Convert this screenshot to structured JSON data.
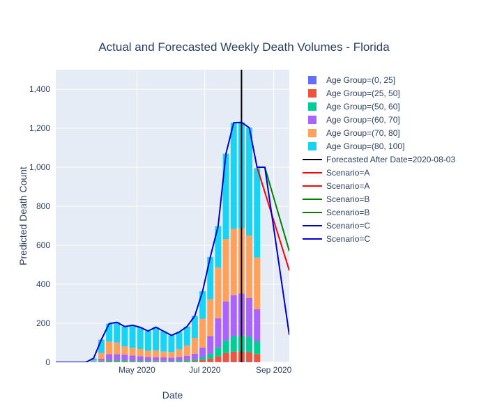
{
  "chart_data": {
    "type": "bar",
    "title": "Actual and Forecasted Weekly Death Volumes - Florida",
    "xlabel": "Date",
    "ylabel": "Predicted Death Count",
    "ylim": [
      0,
      1500
    ],
    "yticks": [
      0,
      200,
      400,
      600,
      800,
      1000,
      1200,
      1400
    ],
    "ytick_labels": [
      "0",
      "200",
      "400",
      "600",
      "800",
      "1,000",
      "1,200",
      "1,400"
    ],
    "xlim": [
      "2020-02-18",
      "2020-09-15"
    ],
    "xticks": [
      "2020-05-01",
      "2020-07-01",
      "2020-09-01"
    ],
    "xtick_labels": [
      "May 2020",
      "Jul 2020",
      "Sep 2020"
    ],
    "grid": true,
    "legend_position": "right",
    "weeks": [
      "2020-03-02",
      "2020-03-09",
      "2020-03-16",
      "2020-03-23",
      "2020-03-30",
      "2020-04-06",
      "2020-04-13",
      "2020-04-20",
      "2020-04-27",
      "2020-05-04",
      "2020-05-11",
      "2020-05-18",
      "2020-05-25",
      "2020-06-01",
      "2020-06-08",
      "2020-06-15",
      "2020-06-22",
      "2020-06-29",
      "2020-07-06",
      "2020-07-13",
      "2020-07-20",
      "2020-07-27",
      "2020-08-03",
      "2020-08-10",
      "2020-08-17"
    ],
    "series": [
      {
        "name": "Age Group=(0, 25]",
        "color": "#636efa",
        "values": [
          0,
          0,
          0,
          0,
          1,
          1,
          1,
          1,
          1,
          1,
          1,
          1,
          1,
          1,
          1,
          1,
          1,
          1,
          1,
          1,
          2,
          2,
          2,
          2,
          2
        ]
      },
      {
        "name": "Age Group=(25, 50]",
        "color": "#ef553b",
        "values": [
          0,
          0,
          0,
          1,
          3,
          4,
          4,
          4,
          3,
          3,
          3,
          3,
          3,
          2,
          3,
          4,
          6,
          10,
          18,
          30,
          45,
          52,
          53,
          50,
          40
        ]
      },
      {
        "name": "Age Group=(50, 60]",
        "color": "#00cc96",
        "values": [
          0,
          0,
          0,
          1,
          4,
          6,
          6,
          6,
          5,
          5,
          5,
          4,
          4,
          4,
          5,
          6,
          8,
          14,
          25,
          45,
          65,
          80,
          82,
          78,
          65
        ]
      },
      {
        "name": "Age Group=(60, 70]",
        "color": "#ab63fa",
        "values": [
          0,
          0,
          0,
          2,
          10,
          30,
          30,
          28,
          25,
          22,
          18,
          18,
          17,
          16,
          18,
          22,
          28,
          50,
          90,
          150,
          200,
          210,
          215,
          200,
          165
        ]
      },
      {
        "name": "Age Group=(70, 80]",
        "color": "#ffa15a",
        "values": [
          0,
          0,
          0,
          4,
          30,
          65,
          60,
          42,
          40,
          37,
          32,
          35,
          30,
          30,
          40,
          53,
          82,
          148,
          190,
          260,
          320,
          340,
          335,
          320,
          265
        ]
      },
      {
        "name": "Age Group=(80, 100]",
        "color": "#19d3f3",
        "values": [
          0,
          0,
          0,
          12,
          68,
          92,
          104,
          102,
          116,
          111,
          101,
          119,
          104,
          85,
          88,
          97,
          113,
          141,
          216,
          212,
          437,
          544,
          543,
          552,
          458
        ]
      }
    ],
    "lines": [
      {
        "name": "Forecasted After Date=2020-08-03",
        "color": "#000000",
        "x": [
          "2020-08-03",
          "2020-08-03"
        ],
        "y": [
          0,
          1500
        ]
      },
      {
        "name": "Scenario=A",
        "color": "#ff0000",
        "x": [
          "2020-08-17",
          "2020-09-15"
        ],
        "y": [
          1000,
          470
        ]
      },
      {
        "name": "Scenario=A",
        "color": "#ff0000",
        "x": [],
        "y": []
      },
      {
        "name": "Scenario=B",
        "color": "#008000",
        "x": [
          "2020-08-17",
          "2020-08-24",
          "2020-09-15"
        ],
        "y": [
          1000,
          1000,
          570
        ]
      },
      {
        "name": "Scenario=B",
        "color": "#008000",
        "x": [],
        "y": []
      },
      {
        "name": "Scenario=C",
        "color": "#0000cd",
        "x": [
          "2020-02-18",
          "2020-03-02",
          "2020-03-09",
          "2020-03-16",
          "2020-03-23",
          "2020-03-30",
          "2020-04-06",
          "2020-04-13",
          "2020-04-20",
          "2020-04-27",
          "2020-05-04",
          "2020-05-11",
          "2020-05-18",
          "2020-05-25",
          "2020-06-01",
          "2020-06-08",
          "2020-06-15",
          "2020-06-22",
          "2020-06-29",
          "2020-07-06",
          "2020-07-13",
          "2020-07-20",
          "2020-07-27",
          "2020-08-03",
          "2020-08-10",
          "2020-08-17",
          "2020-08-24",
          "2020-09-15"
        ],
        "y": [
          0,
          0,
          0,
          0,
          20,
          116,
          198,
          205,
          183,
          190,
          179,
          160,
          180,
          159,
          138,
          155,
          183,
          238,
          364,
          540,
          698,
          1069,
          1228,
          1230,
          1202,
          1000,
          1000,
          140
        ]
      },
      {
        "name": "Scenario=C",
        "color": "#0000cd",
        "x": [],
        "y": []
      }
    ]
  }
}
